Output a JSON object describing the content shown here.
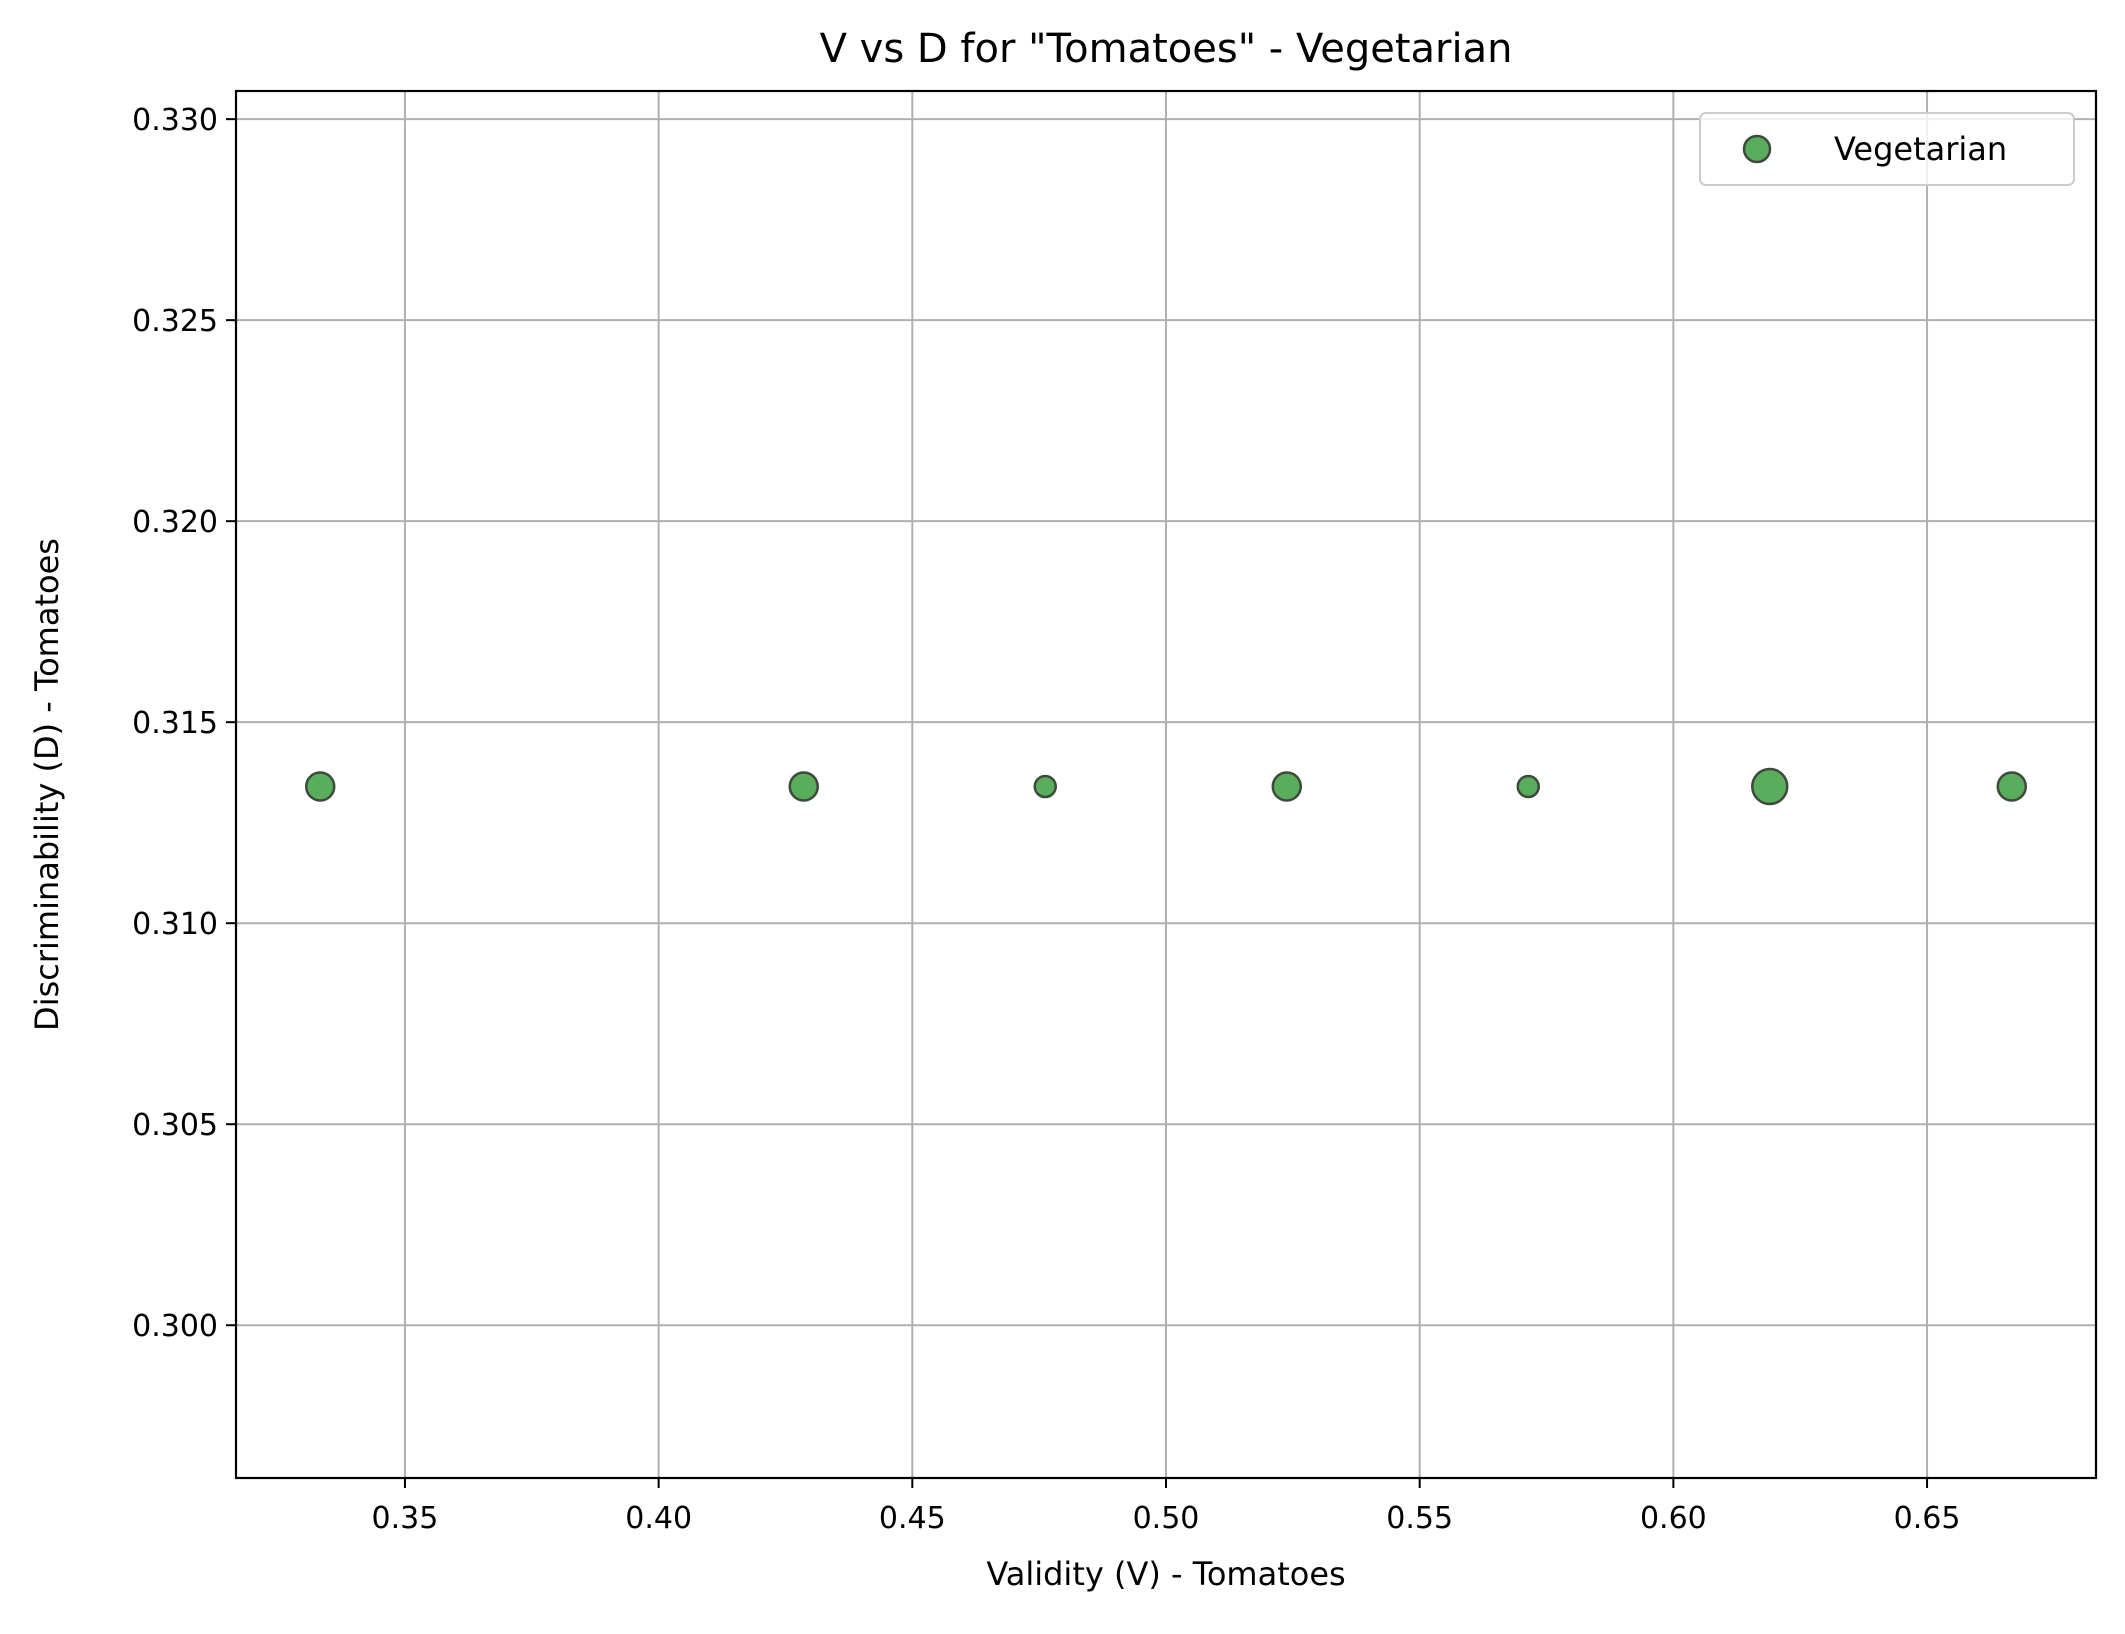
{
  "chart_data": {
    "type": "scatter",
    "title": "V vs D for \"Tomatoes\" - Vegetarian",
    "xlabel": "Validity (V) - Tomatoes",
    "ylabel": "Discriminability (D) - Tomatoes",
    "xlim": [
      0.3167,
      0.6833
    ],
    "ylim": [
      0.2962,
      0.3307
    ],
    "x_ticks": [
      0.35,
      0.4,
      0.45,
      0.5,
      0.55,
      0.6,
      0.65
    ],
    "x_tick_labels": [
      "0.35",
      "0.40",
      "0.45",
      "0.50",
      "0.55",
      "0.60",
      "0.65"
    ],
    "y_ticks": [
      0.3,
      0.305,
      0.31,
      0.315,
      0.32,
      0.325,
      0.33
    ],
    "y_tick_labels": [
      "0.300",
      "0.305",
      "0.310",
      "0.315",
      "0.320",
      "0.325",
      "0.330"
    ],
    "grid": true,
    "legend_position": "top-right",
    "series": [
      {
        "name": "Vegetarian",
        "color": "#5aad5a",
        "edge_color": "#3d4a3d",
        "points": [
          {
            "x": 0.3333,
            "y": 0.3134,
            "size": 2
          },
          {
            "x": 0.4286,
            "y": 0.3134,
            "size": 2
          },
          {
            "x": 0.4762,
            "y": 0.3134,
            "size": 1
          },
          {
            "x": 0.5238,
            "y": 0.3134,
            "size": 2
          },
          {
            "x": 0.5714,
            "y": 0.3134,
            "size": 1
          },
          {
            "x": 0.619,
            "y": 0.3134,
            "size": 3
          },
          {
            "x": 0.6667,
            "y": 0.3134,
            "size": 2
          }
        ]
      }
    ]
  }
}
